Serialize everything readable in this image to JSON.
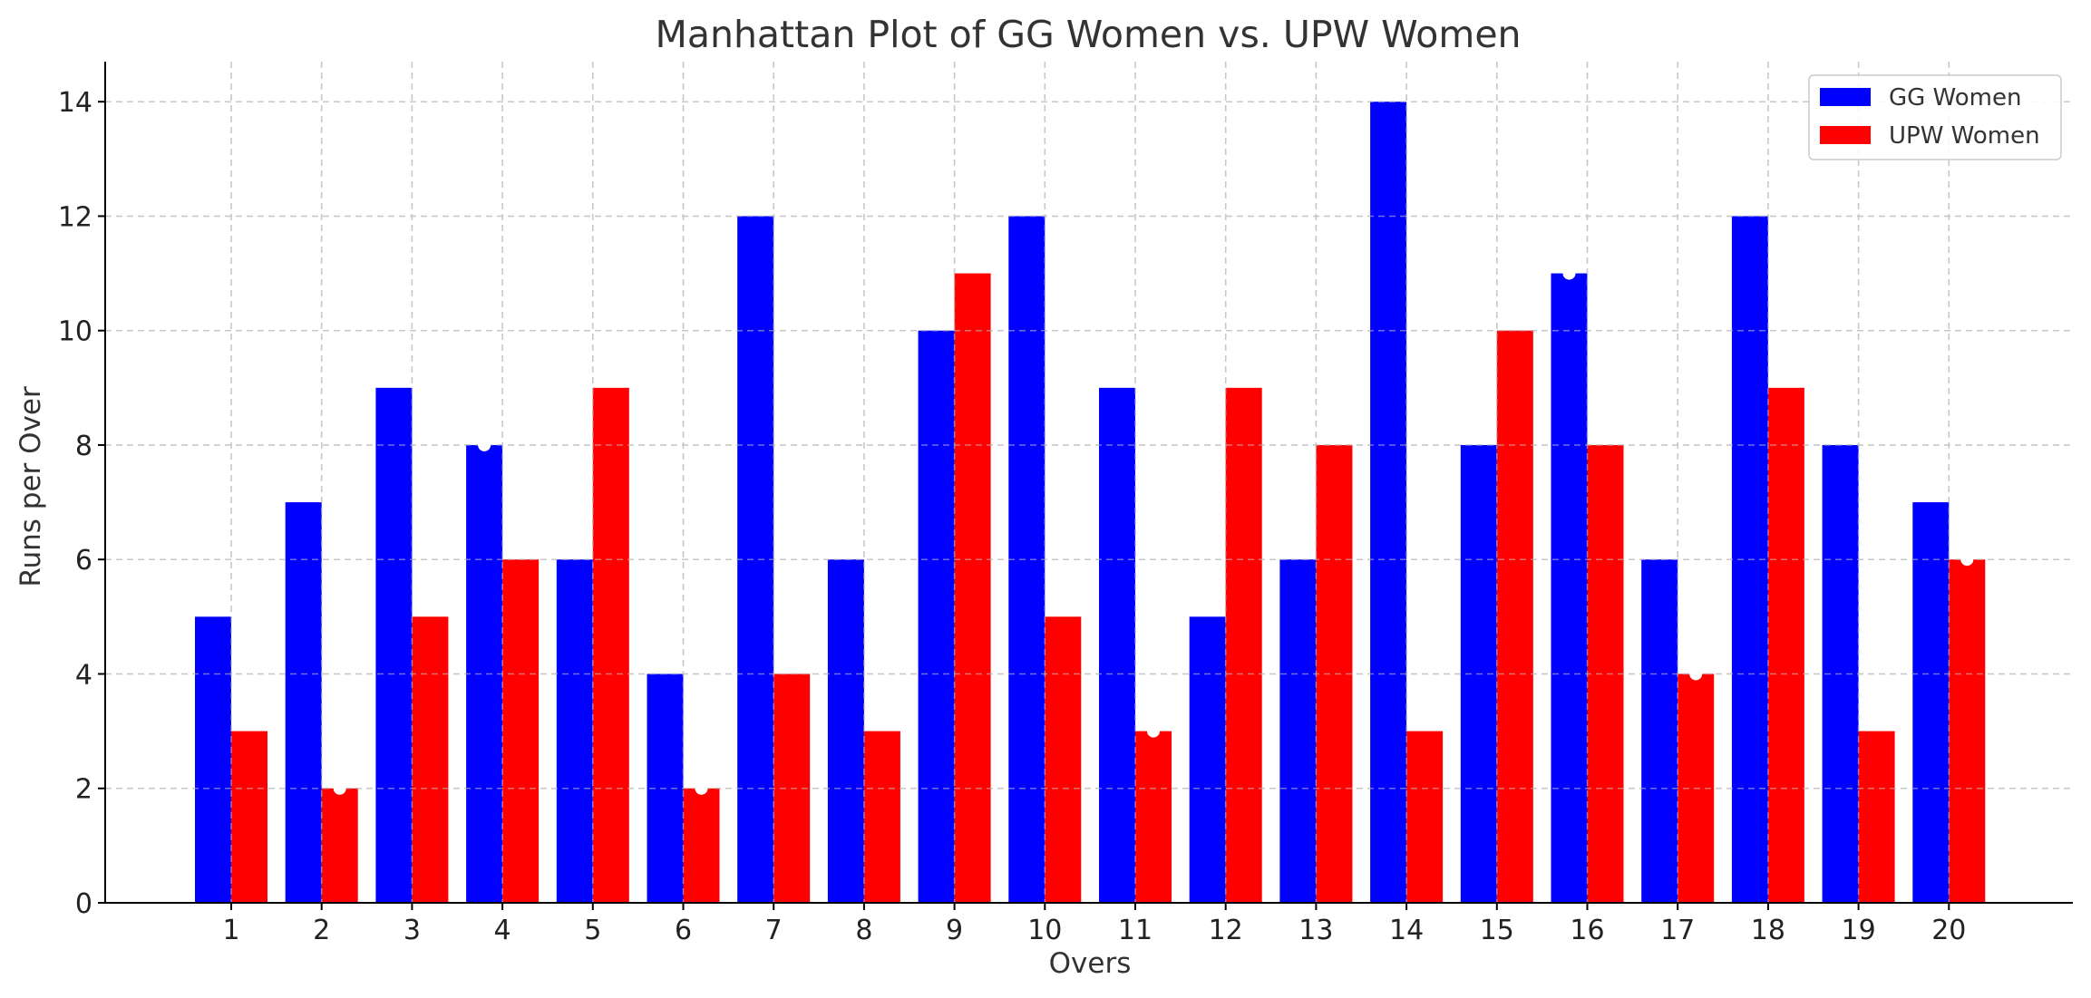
{
  "chart_data": {
    "type": "bar",
    "title": "Manhattan Plot of GG Women vs. UPW Women",
    "xlabel": "Overs",
    "ylabel": "Runs per Over",
    "categories": [
      "1",
      "2",
      "3",
      "4",
      "5",
      "6",
      "7",
      "8",
      "9",
      "10",
      "11",
      "12",
      "13",
      "14",
      "15",
      "16",
      "17",
      "18",
      "19",
      "20"
    ],
    "series": [
      {
        "name": "GG Women",
        "color": "#0000ff",
        "values": [
          5,
          7,
          9,
          8,
          6,
          4,
          12,
          6,
          10,
          12,
          9,
          5,
          6,
          14,
          8,
          11,
          6,
          12,
          8,
          7
        ],
        "wicket_overs": [
          "4",
          "16"
        ]
      },
      {
        "name": "UPW Women",
        "color": "#ff0000",
        "values": [
          3,
          2,
          5,
          6,
          9,
          2,
          4,
          3,
          11,
          5,
          3,
          9,
          8,
          3,
          10,
          8,
          4,
          9,
          3,
          6
        ],
        "wicket_overs": [
          "2",
          "6",
          "11",
          "17",
          "20"
        ]
      }
    ],
    "ylim": [
      0,
      14.7
    ],
    "yticks": [
      "0",
      "2",
      "4",
      "6",
      "8",
      "10",
      "12",
      "14"
    ],
    "grid": true,
    "legend_position": "top-right",
    "wicket_marker_color": "#ffffff"
  }
}
